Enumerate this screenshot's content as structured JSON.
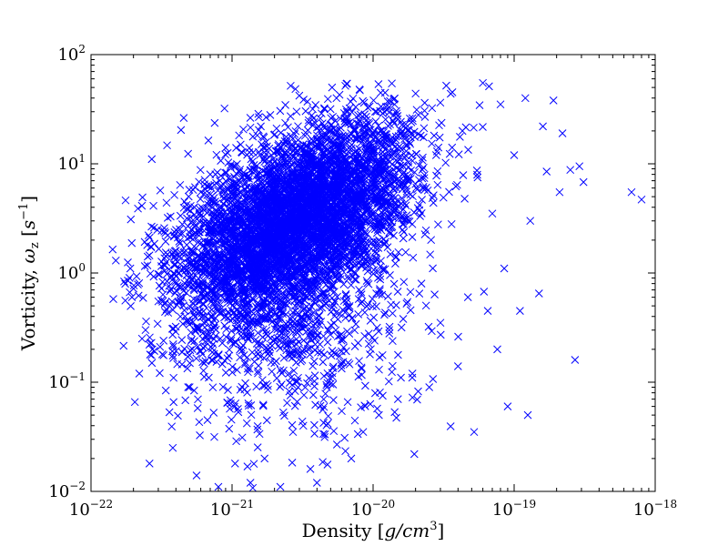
{
  "chart_data": {
    "type": "scatter",
    "marker": "x",
    "color": "#0000ff",
    "xscale": "log",
    "yscale": "log",
    "xlim": [
      1e-22,
      1e-18
    ],
    "ylim": [
      0.01,
      100
    ],
    "grid": false,
    "legend": "none",
    "xlabel": {
      "text": "Density ",
      "math": "g/cm",
      "exp": "3"
    },
    "ylabel": {
      "text": "Vorticity, ",
      "math_symbol": "ω",
      "math_sub": "z",
      "unit": "s",
      "unit_exp": "−1"
    },
    "xticks": [
      {
        "value": 1e-22,
        "base": "10",
        "exp": "−22"
      },
      {
        "value": 1e-21,
        "base": "10",
        "exp": "−21"
      },
      {
        "value": 1e-20,
        "base": "10",
        "exp": "−20"
      },
      {
        "value": 1e-19,
        "base": "10",
        "exp": "−19"
      },
      {
        "value": 1e-18,
        "base": "10",
        "exp": "−18"
      }
    ],
    "yticks": [
      {
        "value": 0.01,
        "base": "10",
        "exp": "−2"
      },
      {
        "value": 0.1,
        "base": "10",
        "exp": "−1"
      },
      {
        "value": 1,
        "base": "10",
        "exp": "0"
      },
      {
        "value": 10,
        "base": "10",
        "exp": "1"
      },
      {
        "value": 100,
        "base": "10",
        "exp": "2"
      }
    ],
    "points": [
      [
        1.5e-22,
        1.3
      ],
      [
        1.9e-22,
        1.1
      ],
      [
        2e-22,
        0.72
      ],
      [
        2.2e-22,
        0.12
      ],
      [
        2.3e-22,
        0.25
      ],
      [
        2.5e-22,
        1.8
      ],
      [
        2.6e-22,
        0.018
      ],
      [
        2.7e-22,
        0.15
      ],
      [
        2.8e-22,
        2.6
      ],
      [
        3e-22,
        0.55
      ],
      [
        3.2e-22,
        0.18
      ],
      [
        3.5e-22,
        3.2
      ],
      [
        3.8e-22,
        0.025
      ],
      [
        4e-22,
        1.6
      ],
      [
        4.3e-22,
        0.4
      ],
      [
        4.6e-22,
        4.5
      ],
      [
        5e-22,
        0.09
      ],
      [
        5.3e-22,
        2.2
      ],
      [
        5.6e-22,
        0.014
      ],
      [
        6e-22,
        5.5
      ],
      [
        6.3e-22,
        0.7
      ],
      [
        6.7e-22,
        0.045
      ],
      [
        7e-22,
        8.0
      ],
      [
        7.5e-22,
        1.5
      ],
      [
        8e-22,
        0.011
      ],
      [
        8.5e-22,
        3.0
      ],
      [
        9e-22,
        14.0
      ],
      [
        9.5e-22,
        0.6
      ],
      [
        1e-21,
        6.5
      ],
      [
        1.05e-21,
        0.018
      ],
      [
        1.1e-21,
        1.2
      ],
      [
        1.15e-21,
        15.0
      ],
      [
        1.2e-21,
        0.3
      ],
      [
        1.3e-21,
        4.0
      ],
      [
        1.35e-21,
        0.012
      ],
      [
        1.4e-21,
        9.0
      ],
      [
        1.5e-21,
        1.8
      ],
      [
        1.6e-21,
        22.0
      ],
      [
        1.7e-21,
        0.02
      ],
      [
        1.8e-21,
        3.5
      ],
      [
        1.9e-21,
        12.0
      ],
      [
        2e-21,
        0.15
      ],
      [
        2.1e-21,
        7.0
      ],
      [
        2.2e-21,
        0.011
      ],
      [
        2.4e-21,
        2.5
      ],
      [
        2.6e-21,
        18.0
      ],
      [
        2.8e-21,
        0.5
      ],
      [
        3e-21,
        5.0
      ],
      [
        3.2e-21,
        0.04
      ],
      [
        3.5e-21,
        25.0
      ],
      [
        3.8e-21,
        1.4
      ],
      [
        4e-21,
        0.012
      ],
      [
        4.3e-21,
        10.0
      ],
      [
        4.7e-21,
        0.09
      ],
      [
        5e-21,
        3.8
      ],
      [
        5.5e-21,
        40.0
      ],
      [
        6e-21,
        0.25
      ],
      [
        6.5e-21,
        8.5
      ],
      [
        7e-21,
        0.02
      ],
      [
        7.5e-21,
        1.0
      ],
      [
        8e-21,
        48.0
      ],
      [
        8.5e-21,
        0.035
      ],
      [
        9e-21,
        14.0
      ],
      [
        9.5e-21,
        0.18
      ],
      [
        1e-20,
        6.0
      ],
      [
        1.1e-20,
        0.05
      ],
      [
        1.2e-20,
        30.0
      ],
      [
        1.3e-20,
        0.3
      ],
      [
        1.4e-20,
        2.2
      ],
      [
        1.5e-20,
        0.07
      ],
      [
        1.7e-20,
        18.0
      ],
      [
        1.9e-20,
        0.12
      ],
      [
        2e-20,
        44.0
      ],
      [
        2.2e-20,
        0.8
      ],
      [
        2.5e-20,
        0.09
      ],
      [
        2.8e-20,
        12.0
      ],
      [
        3e-20,
        0.35
      ],
      [
        3.3e-20,
        52.0
      ],
      [
        3.6e-20,
        2.8
      ],
      [
        4e-20,
        0.14
      ],
      [
        4.3e-20,
        20.0
      ],
      [
        4.7e-20,
        0.6
      ],
      [
        5.2e-20,
        0.035
      ],
      [
        5.5e-20,
        7.5
      ],
      [
        6e-20,
        55.0
      ],
      [
        6.5e-20,
        0.45
      ],
      [
        7e-20,
        3.5
      ],
      [
        7.6e-20,
        0.2
      ],
      [
        8e-20,
        35.0
      ],
      [
        8.5e-20,
        1.1
      ],
      [
        9e-20,
        0.06
      ],
      [
        1e-19,
        12.0
      ],
      [
        1.1e-19,
        0.45
      ],
      [
        1.2e-19,
        40.0
      ],
      [
        1.25e-19,
        0.05
      ],
      [
        1.3e-19,
        3.0
      ],
      [
        1.5e-19,
        0.65
      ],
      [
        1.6e-19,
        22.0
      ],
      [
        1.7e-19,
        8.5
      ],
      [
        1.9e-19,
        38.0
      ],
      [
        2.1e-19,
        5.5
      ],
      [
        2.2e-19,
        19.0
      ],
      [
        2.5e-19,
        8.8
      ],
      [
        2.7e-19,
        0.16
      ],
      [
        2.9e-19,
        9.5
      ],
      [
        3.1e-19,
        6.8
      ],
      [
        6.8e-19,
        5.5
      ],
      [
        8e-19,
        4.7
      ]
    ]
  }
}
